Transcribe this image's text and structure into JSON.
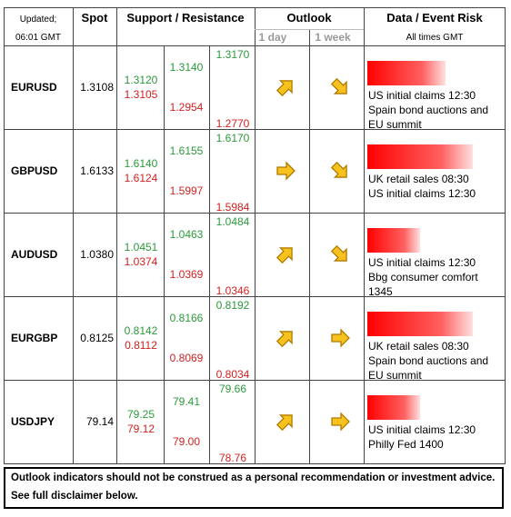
{
  "header": {
    "updated": "Updated;",
    "time": "06:01 GMT",
    "spot": "Spot",
    "levels": "Support / Resistance",
    "outlook": "Outlook",
    "day": "1 day",
    "week": "1 week",
    "events": "Data / Event Risk",
    "tz": "All times GMT"
  },
  "rows": [
    {
      "pair": "EURUSD",
      "spot": "1.3108",
      "resistance": [
        "1.3170",
        "1.3140",
        "1.3120"
      ],
      "support": [
        "1.3105",
        "1.2954",
        "1.2770"
      ],
      "events": [
        "US initial claims 12:30",
        "Spain bond auctions and",
        "EU summit"
      ]
    },
    {
      "pair": "GBPUSD",
      "spot": "1.6133",
      "resistance": [
        "1.6170",
        "1.6155",
        "1.6140"
      ],
      "support": [
        "1.6124",
        "1.5997",
        "1.5984"
      ],
      "events": [
        "UK retail sales 08:30",
        "US initial claims 12:30"
      ]
    },
    {
      "pair": "AUDUSD",
      "spot": "1.0380",
      "resistance": [
        "1.0484",
        "1.0463",
        "1.0451"
      ],
      "support": [
        "1.0374",
        "1.0369",
        "1.0346"
      ],
      "events": [
        "US initial claims 12:30",
        "Bbg consumer comfort",
        "1345"
      ]
    },
    {
      "pair": "EURGBP",
      "spot": "0.8125",
      "resistance": [
        "0.8192",
        "0.8166",
        "0.8142"
      ],
      "support": [
        "0.8112",
        "0.8069",
        "0.8034"
      ],
      "events": [
        "UK retail sales 08:30",
        "Spain bond auctions and",
        "EU summit"
      ]
    },
    {
      "pair": "USDJPY",
      "spot": "79.14",
      "resistance": [
        "79.66",
        "79.41",
        "79.25"
      ],
      "support": [
        "79.12",
        "79.00",
        "78.76"
      ],
      "events": [
        "US initial claims 12:30",
        "Philly Fed 1400"
      ]
    }
  ],
  "footer": [
    "Outlook indicators should not be construed as a personal recommendation or investment advice.",
    "See full disclaimer below."
  ]
}
